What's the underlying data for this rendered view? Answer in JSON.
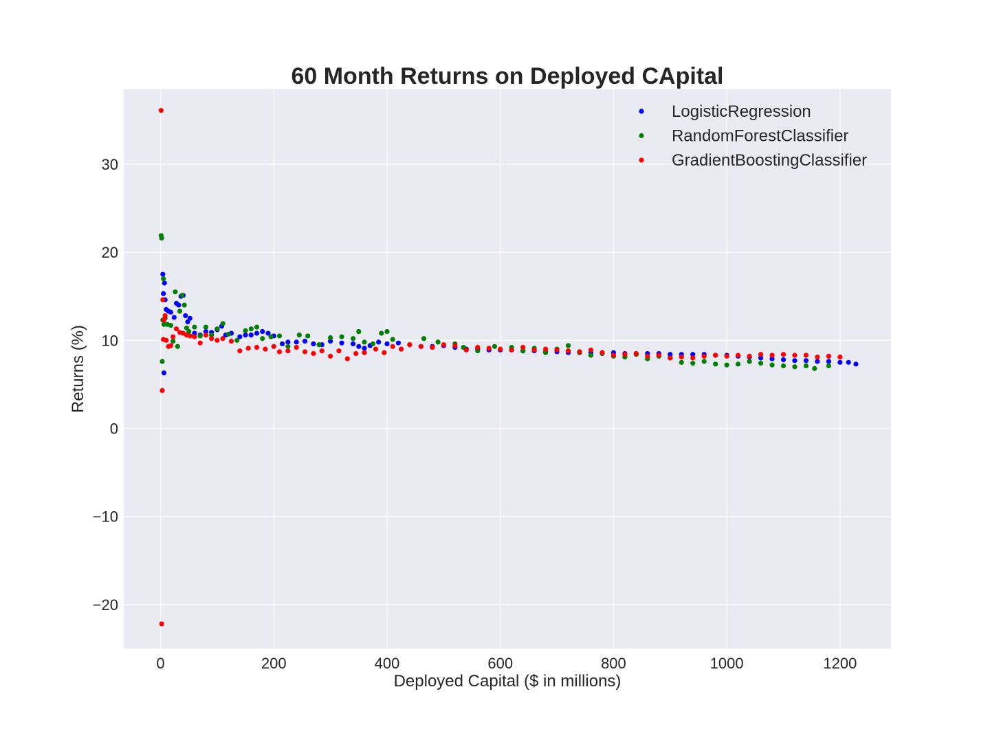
{
  "chart_data": {
    "type": "scatter",
    "title": "60 Month Returns on Deployed CApital",
    "xlabel": "Deployed Capital ($ in millions)",
    "ylabel": "Returns (%)",
    "xlim": [
      -65,
      1290
    ],
    "ylim": [
      -25,
      38.5
    ],
    "xticks": [
      0,
      200,
      400,
      600,
      800,
      1000,
      1200
    ],
    "xtick_labels": [
      "0",
      "200",
      "400",
      "600",
      "800",
      "1000",
      "1200"
    ],
    "yticks": [
      -20,
      -10,
      0,
      10,
      20,
      30
    ],
    "ytick_labels": [
      "−20",
      "−10",
      "0",
      "10",
      "20",
      "30"
    ],
    "grid": true,
    "legend_position": "top-right",
    "background_color": "#EAEAF2",
    "series": [
      {
        "name": "LogisticRegression",
        "color": "#0000FF",
        "points": [
          [
            4,
            17.5
          ],
          [
            5,
            15.3
          ],
          [
            6,
            6.3
          ],
          [
            7,
            16.5
          ],
          [
            8,
            14.6
          ],
          [
            10,
            13.5
          ],
          [
            14,
            13.3
          ],
          [
            18,
            13.2
          ],
          [
            24,
            12.6
          ],
          [
            28,
            14.2
          ],
          [
            32,
            14.0
          ],
          [
            36,
            15.0
          ],
          [
            40,
            15.1
          ],
          [
            44,
            12.8
          ],
          [
            48,
            12.1
          ],
          [
            52,
            12.5
          ],
          [
            60,
            10.8
          ],
          [
            70,
            10.6
          ],
          [
            80,
            11.0
          ],
          [
            90,
            10.9
          ],
          [
            100,
            11.2
          ],
          [
            108,
            11.6
          ],
          [
            115,
            10.6
          ],
          [
            125,
            10.8
          ],
          [
            140,
            10.4
          ],
          [
            150,
            10.6
          ],
          [
            160,
            10.6
          ],
          [
            170,
            10.8
          ],
          [
            180,
            11.0
          ],
          [
            190,
            10.8
          ],
          [
            200,
            10.5
          ],
          [
            215,
            9.6
          ],
          [
            225,
            9.8
          ],
          [
            240,
            9.8
          ],
          [
            255,
            9.9
          ],
          [
            270,
            9.6
          ],
          [
            285,
            9.5
          ],
          [
            300,
            9.9
          ],
          [
            320,
            9.7
          ],
          [
            340,
            9.6
          ],
          [
            350,
            9.3
          ],
          [
            360,
            9.1
          ],
          [
            370,
            9.4
          ],
          [
            385,
            9.8
          ],
          [
            400,
            9.6
          ],
          [
            420,
            9.7
          ],
          [
            440,
            9.5
          ],
          [
            460,
            9.3
          ],
          [
            480,
            9.3
          ],
          [
            500,
            9.4
          ],
          [
            520,
            9.2
          ],
          [
            540,
            9.0
          ],
          [
            560,
            9.0
          ],
          [
            580,
            8.9
          ],
          [
            600,
            8.9
          ],
          [
            620,
            8.9
          ],
          [
            640,
            8.8
          ],
          [
            660,
            8.8
          ],
          [
            680,
            8.7
          ],
          [
            700,
            8.7
          ],
          [
            720,
            8.6
          ],
          [
            740,
            8.6
          ],
          [
            760,
            8.6
          ],
          [
            780,
            8.6
          ],
          [
            800,
            8.6
          ],
          [
            820,
            8.5
          ],
          [
            840,
            8.5
          ],
          [
            860,
            8.5
          ],
          [
            880,
            8.5
          ],
          [
            900,
            8.4
          ],
          [
            920,
            8.4
          ],
          [
            940,
            8.4
          ],
          [
            960,
            8.4
          ],
          [
            980,
            8.3
          ],
          [
            1000,
            8.3
          ],
          [
            1020,
            8.2
          ],
          [
            1040,
            8.1
          ],
          [
            1060,
            8.0
          ],
          [
            1080,
            7.9
          ],
          [
            1100,
            7.8
          ],
          [
            1120,
            7.7
          ],
          [
            1140,
            7.7
          ],
          [
            1160,
            7.6
          ],
          [
            1180,
            7.6
          ],
          [
            1200,
            7.5
          ],
          [
            1215,
            7.5
          ],
          [
            1228,
            7.3
          ]
        ]
      },
      {
        "name": "RandomForestClassifier",
        "color": "#008000",
        "points": [
          [
            1,
            21.9
          ],
          [
            2,
            21.6
          ],
          [
            3,
            7.6
          ],
          [
            4,
            12.3
          ],
          [
            5,
            17.0
          ],
          [
            6,
            11.8
          ],
          [
            8,
            12.5
          ],
          [
            12,
            11.8
          ],
          [
            18,
            11.7
          ],
          [
            22,
            9.9
          ],
          [
            26,
            15.5
          ],
          [
            30,
            9.3
          ],
          [
            34,
            13.3
          ],
          [
            38,
            15.1
          ],
          [
            42,
            14.0
          ],
          [
            46,
            11.4
          ],
          [
            50,
            11.0
          ],
          [
            60,
            11.5
          ],
          [
            70,
            10.5
          ],
          [
            80,
            11.5
          ],
          [
            90,
            10.6
          ],
          [
            100,
            11.3
          ],
          [
            110,
            11.9
          ],
          [
            120,
            10.7
          ],
          [
            135,
            10.0
          ],
          [
            150,
            11.1
          ],
          [
            160,
            11.3
          ],
          [
            170,
            11.5
          ],
          [
            180,
            10.2
          ],
          [
            195,
            10.4
          ],
          [
            210,
            10.5
          ],
          [
            225,
            9.3
          ],
          [
            245,
            10.6
          ],
          [
            260,
            10.5
          ],
          [
            280,
            9.5
          ],
          [
            300,
            10.3
          ],
          [
            320,
            10.4
          ],
          [
            340,
            10.2
          ],
          [
            350,
            11.0
          ],
          [
            360,
            9.8
          ],
          [
            375,
            9.6
          ],
          [
            390,
            10.8
          ],
          [
            400,
            11.0
          ],
          [
            410,
            10.1
          ],
          [
            440,
            9.5
          ],
          [
            465,
            10.2
          ],
          [
            490,
            9.8
          ],
          [
            520,
            9.6
          ],
          [
            535,
            9.2
          ],
          [
            560,
            8.8
          ],
          [
            590,
            9.3
          ],
          [
            620,
            9.2
          ],
          [
            640,
            8.8
          ],
          [
            660,
            9.1
          ],
          [
            680,
            8.6
          ],
          [
            700,
            9.0
          ],
          [
            720,
            9.4
          ],
          [
            740,
            8.6
          ],
          [
            760,
            8.3
          ],
          [
            780,
            8.5
          ],
          [
            800,
            8.2
          ],
          [
            820,
            8.1
          ],
          [
            840,
            8.4
          ],
          [
            860,
            7.9
          ],
          [
            880,
            8.2
          ],
          [
            900,
            8.0
          ],
          [
            920,
            7.5
          ],
          [
            940,
            7.4
          ],
          [
            960,
            7.6
          ],
          [
            980,
            7.3
          ],
          [
            1000,
            7.2
          ],
          [
            1020,
            7.3
          ],
          [
            1040,
            7.6
          ],
          [
            1060,
            7.4
          ],
          [
            1080,
            7.2
          ],
          [
            1100,
            7.1
          ],
          [
            1120,
            7.0
          ],
          [
            1140,
            7.1
          ],
          [
            1155,
            6.8
          ],
          [
            1180,
            7.1
          ]
        ]
      },
      {
        "name": "GradientBoostingClassifier",
        "color": "#FF0000",
        "points": [
          [
            1,
            36.1
          ],
          [
            2,
            -22.2
          ],
          [
            3,
            4.3
          ],
          [
            4,
            14.6
          ],
          [
            5,
            10.1
          ],
          [
            6,
            12.3
          ],
          [
            8,
            12.8
          ],
          [
            10,
            10.0
          ],
          [
            14,
            9.3
          ],
          [
            18,
            9.4
          ],
          [
            22,
            10.4
          ],
          [
            28,
            11.3
          ],
          [
            34,
            10.9
          ],
          [
            40,
            10.8
          ],
          [
            46,
            10.6
          ],
          [
            52,
            10.5
          ],
          [
            60,
            10.4
          ],
          [
            70,
            9.7
          ],
          [
            80,
            10.6
          ],
          [
            90,
            10.2
          ],
          [
            100,
            10.0
          ],
          [
            110,
            10.2
          ],
          [
            125,
            9.9
          ],
          [
            140,
            8.8
          ],
          [
            155,
            9.1
          ],
          [
            170,
            9.2
          ],
          [
            185,
            9.0
          ],
          [
            200,
            9.3
          ],
          [
            210,
            8.7
          ],
          [
            225,
            8.8
          ],
          [
            240,
            9.2
          ],
          [
            255,
            8.7
          ],
          [
            270,
            8.5
          ],
          [
            285,
            8.8
          ],
          [
            300,
            8.2
          ],
          [
            315,
            8.8
          ],
          [
            330,
            7.9
          ],
          [
            345,
            8.5
          ],
          [
            360,
            8.6
          ],
          [
            380,
            9.0
          ],
          [
            395,
            8.6
          ],
          [
            410,
            9.3
          ],
          [
            425,
            9.0
          ],
          [
            440,
            9.5
          ],
          [
            460,
            9.3
          ],
          [
            480,
            9.2
          ],
          [
            500,
            9.5
          ],
          [
            520,
            9.4
          ],
          [
            540,
            8.9
          ],
          [
            560,
            9.2
          ],
          [
            580,
            9.1
          ],
          [
            600,
            9.0
          ],
          [
            620,
            8.9
          ],
          [
            640,
            9.2
          ],
          [
            660,
            8.9
          ],
          [
            680,
            9.0
          ],
          [
            700,
            8.9
          ],
          [
            720,
            8.8
          ],
          [
            740,
            8.7
          ],
          [
            760,
            8.9
          ],
          [
            780,
            8.6
          ],
          [
            800,
            8.3
          ],
          [
            820,
            8.4
          ],
          [
            840,
            8.5
          ],
          [
            860,
            8.2
          ],
          [
            880,
            8.3
          ],
          [
            900,
            8.0
          ],
          [
            920,
            8.1
          ],
          [
            940,
            8.0
          ],
          [
            960,
            8.2
          ],
          [
            980,
            8.3
          ],
          [
            1000,
            8.2
          ],
          [
            1020,
            8.3
          ],
          [
            1040,
            8.2
          ],
          [
            1060,
            8.4
          ],
          [
            1080,
            8.3
          ],
          [
            1100,
            8.4
          ],
          [
            1120,
            8.3
          ],
          [
            1140,
            8.3
          ],
          [
            1160,
            8.1
          ],
          [
            1180,
            8.2
          ],
          [
            1200,
            8.1
          ]
        ]
      }
    ]
  }
}
